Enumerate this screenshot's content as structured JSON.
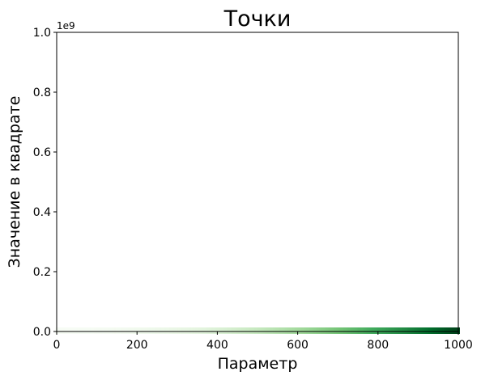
{
  "chart_data": {
    "type": "scatter",
    "title": "Точки",
    "xlabel": "Параметр",
    "ylabel": "Значение в квадрате",
    "xlim": [
      0,
      1000
    ],
    "ylim": [
      0,
      1000000000
    ],
    "y_offset_label": "1e9",
    "x_ticks": [
      "0",
      "200",
      "400",
      "600",
      "800",
      "1000"
    ],
    "y_ticks": [
      "0.0",
      "0.2",
      "0.4",
      "0.6",
      "0.8",
      "1.0"
    ],
    "grid": false,
    "legend": "none",
    "colormap": "Greens",
    "color_by": "y",
    "series": [
      {
        "function": "y = x^2",
        "x_range": [
          1,
          1000
        ],
        "point_count": 1000
      }
    ]
  }
}
